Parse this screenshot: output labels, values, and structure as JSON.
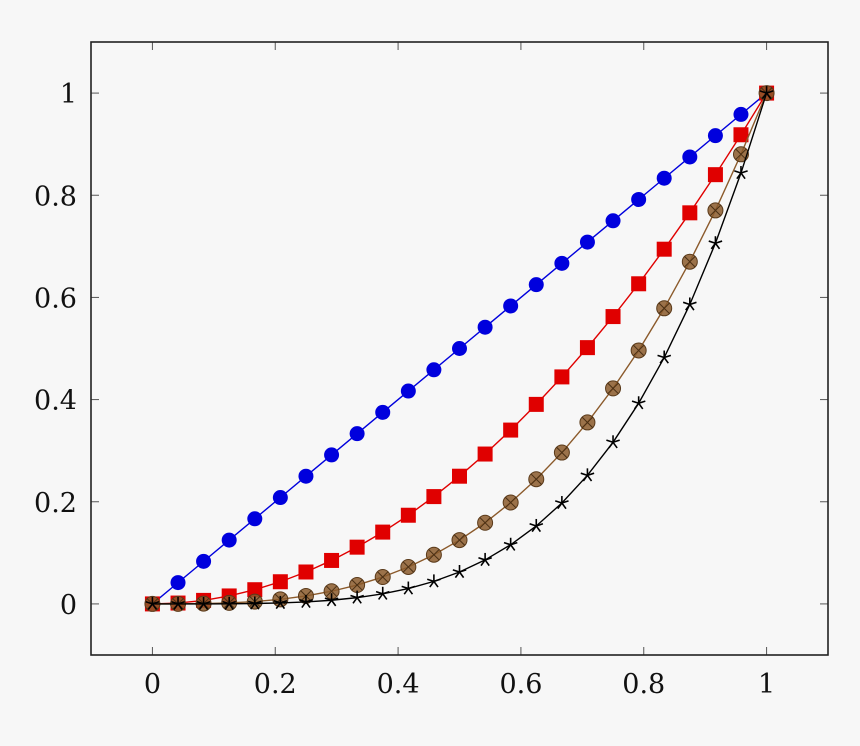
{
  "chart_data": {
    "type": "line",
    "title": "",
    "xlabel": "",
    "ylabel": "",
    "xlim": [
      -0.1,
      1.1
    ],
    "ylim": [
      -0.1,
      1.1
    ],
    "x_ticks": [
      0,
      0.2,
      0.4,
      0.6,
      0.8,
      1
    ],
    "x_tick_labels": [
      "0",
      "0.2",
      "0.4",
      "0.6",
      "0.8",
      "1"
    ],
    "y_ticks": [
      0,
      0.2,
      0.4,
      0.6,
      0.8,
      1
    ],
    "y_tick_labels": [
      "0",
      "0.2",
      "0.4",
      "0.6",
      "0.8",
      "1"
    ],
    "grid": false,
    "legend": "none",
    "x": [
      0,
      0.0417,
      0.0833,
      0.125,
      0.1667,
      0.2083,
      0.25,
      0.2917,
      0.3333,
      0.375,
      0.4167,
      0.4583,
      0.5,
      0.5417,
      0.5833,
      0.625,
      0.6667,
      0.7083,
      0.75,
      0.7917,
      0.8333,
      0.875,
      0.9167,
      0.9583,
      1
    ],
    "series": [
      {
        "color": "#0000dd",
        "marker": "circle",
        "values": [
          0,
          0.0417,
          0.0833,
          0.125,
          0.1667,
          0.2083,
          0.25,
          0.2917,
          0.3333,
          0.375,
          0.4167,
          0.4583,
          0.5,
          0.5417,
          0.5833,
          0.625,
          0.6667,
          0.7083,
          0.75,
          0.7917,
          0.8333,
          0.875,
          0.9167,
          0.9583,
          1
        ]
      },
      {
        "color": "#e00000",
        "marker": "square",
        "values": [
          0,
          0.0017,
          0.0069,
          0.0156,
          0.0278,
          0.0434,
          0.0625,
          0.0851,
          0.1111,
          0.1406,
          0.1736,
          0.2101,
          0.25,
          0.2934,
          0.3403,
          0.3906,
          0.4444,
          0.5017,
          0.5625,
          0.6267,
          0.6944,
          0.7656,
          0.8403,
          0.9184,
          1
        ]
      },
      {
        "color": "#8b5a2b",
        "marker": "otimes",
        "values": [
          0,
          0.0001,
          0.0006,
          0.002,
          0.0046,
          0.009,
          0.0156,
          0.0248,
          0.037,
          0.0527,
          0.0723,
          0.0963,
          0.125,
          0.1589,
          0.1985,
          0.2441,
          0.2963,
          0.3553,
          0.4219,
          0.4962,
          0.5787,
          0.6699,
          0.7703,
          0.8802,
          1
        ]
      },
      {
        "color": "#000000",
        "marker": "star",
        "values": [
          0,
          0,
          0,
          0.0002,
          0.0008,
          0.0019,
          0.0039,
          0.0072,
          0.0123,
          0.0198,
          0.0301,
          0.0441,
          0.0625,
          0.0861,
          0.1158,
          0.1526,
          0.1975,
          0.2517,
          0.3164,
          0.3928,
          0.4823,
          0.5862,
          0.7061,
          0.8435,
          1
        ]
      }
    ]
  }
}
